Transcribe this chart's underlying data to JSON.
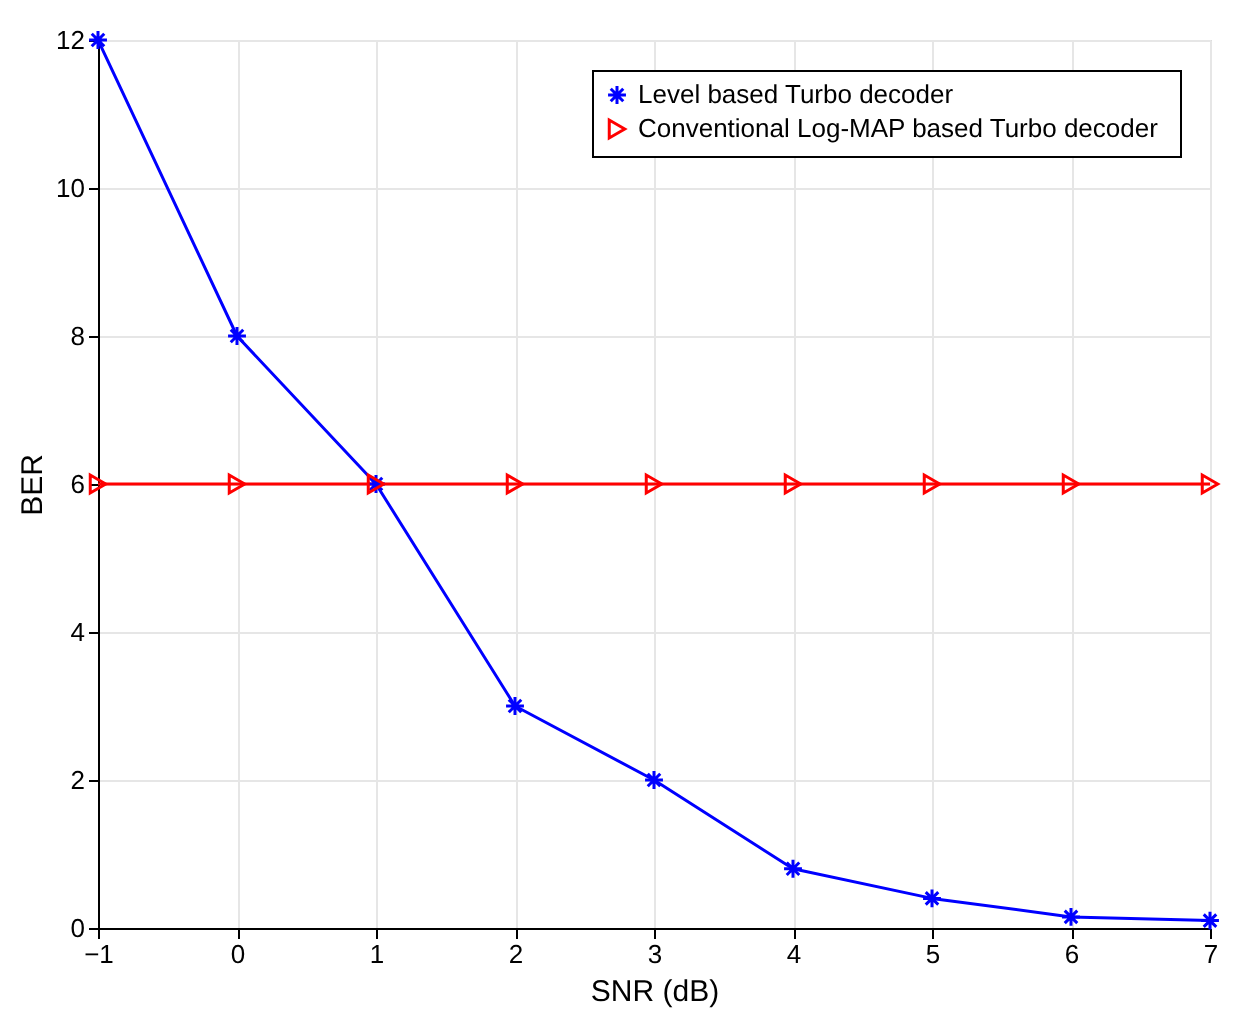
{
  "chart_data": {
    "type": "line",
    "xlabel": "SNR (dB)",
    "ylabel": "BER",
    "x": [
      -1,
      0,
      1,
      2,
      3,
      4,
      5,
      6,
      7
    ],
    "series": [
      {
        "name": "Level based Turbo decoder",
        "color": "#0000ff",
        "marker": "cross",
        "values": [
          12,
          8,
          6,
          3,
          2,
          0.8,
          0.4,
          0.15,
          0.1
        ]
      },
      {
        "name": "Conventional Log-MAP based  Turbo decoder",
        "color": "#ff0000",
        "marker": "triangle",
        "values": [
          6,
          6,
          6,
          6,
          6,
          6,
          6,
          6,
          6
        ]
      }
    ],
    "xlim": [
      -1,
      7
    ],
    "xticks": [
      -1,
      0,
      1,
      2,
      3,
      4,
      5,
      6,
      7
    ],
    "ylim": [
      0,
      12
    ],
    "yticks": [
      0,
      2,
      4,
      6,
      8,
      10,
      12
    ],
    "grid": true,
    "legend": "top right",
    "line_style": "solid"
  }
}
